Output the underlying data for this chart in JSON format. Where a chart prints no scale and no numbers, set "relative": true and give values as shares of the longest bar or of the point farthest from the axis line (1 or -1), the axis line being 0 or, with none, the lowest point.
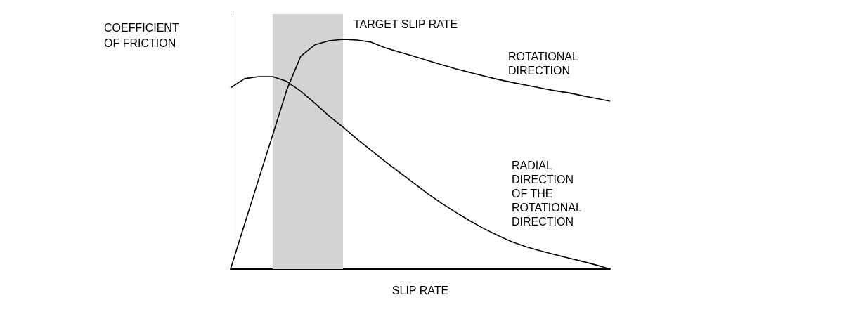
{
  "chart_data": {
    "type": "line",
    "relative": true,
    "xlabel": "SLIP RATE",
    "ylabel": "COEFFICIENT OF FRICTION",
    "grid": false,
    "legend": false,
    "marker": "none",
    "line_style": "solid",
    "categories": [
      null,
      null,
      null,
      null,
      null,
      null,
      null,
      null,
      null,
      null,
      null,
      null,
      null,
      null,
      null,
      null,
      null,
      null,
      null,
      null,
      null,
      null,
      null,
      null,
      null,
      null,
      null,
      null
    ],
    "annotations": [
      "TARGET SLIP RATE"
    ],
    "series": [
      {
        "name": "ROTATIONAL DIRECTION",
        "color": "#000000",
        "values": [
          0,
          0.196,
          0.391,
          0.584,
          0.78,
          0.927,
          0.976,
          0.994,
          1,
          0.997,
          0.988,
          0.963,
          0.945,
          0.927,
          0.908,
          0.89,
          0.872,
          0.856,
          0.841,
          0.826,
          0.813,
          0.801,
          0.789,
          0.777,
          0.768,
          0.755,
          0.743,
          0.731
        ]
      },
      {
        "name": "RADIAL DIRECTION OF THE ROTATIONAL DIRECTION",
        "color": "#000000",
        "values": [
          0.789,
          0.829,
          0.838,
          0.838,
          0.817,
          0.774,
          0.722,
          0.667,
          0.618,
          0.566,
          0.517,
          0.468,
          0.422,
          0.376,
          0.33,
          0.287,
          0.248,
          0.211,
          0.177,
          0.147,
          0.119,
          0.098,
          0.08,
          0.064,
          0.049,
          0.034,
          0.018,
          0
        ]
      }
    ]
  }
}
